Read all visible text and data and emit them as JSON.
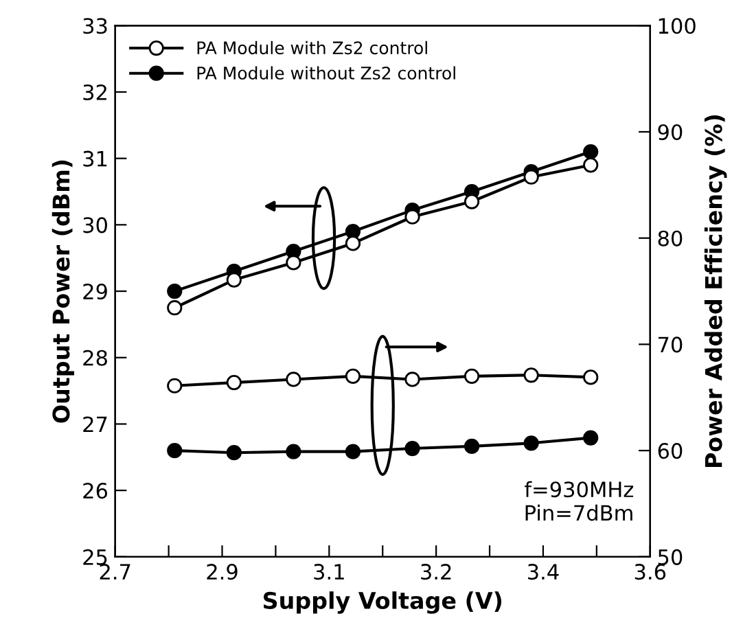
{
  "chart_data": {
    "type": "line",
    "xlabel": "Supply Voltage (V)",
    "ylabel": "Output Power (dBm)",
    "y2label": "Power Added Efficiency (%)",
    "x": [
      2.8,
      2.9,
      3.0,
      3.1,
      3.2,
      3.3,
      3.4,
      3.5
    ],
    "series": [
      {
        "name": "PA Module with Zs2 control",
        "color": "#ffffff",
        "values": [
          28.75,
          29.17,
          29.43,
          29.72,
          30.12,
          30.35,
          30.72,
          30.9
        ]
      },
      {
        "name": "PA Module without Zs2 control",
        "color": "#000000",
        "values": [
          29.0,
          29.3,
          29.6,
          29.9,
          30.22,
          30.5,
          30.8,
          31.1
        ]
      },
      {
        "color": "#ffffff",
        "axis": "y2",
        "values": [
          66.1,
          66.4,
          66.7,
          67.0,
          66.7,
          67.0,
          67.1,
          66.9
        ]
      },
      {
        "color": "#000000",
        "axis": "y2",
        "values": [
          60.0,
          59.8,
          59.9,
          59.9,
          60.2,
          60.4,
          60.7,
          61.2
        ]
      }
    ],
    "xlim": [
      2.7,
      3.6
    ],
    "xticks": [
      {
        "value": 2.7,
        "label": "2.7"
      },
      {
        "value": 2.79,
        "label": null
      },
      {
        "value": 2.88,
        "label": "2.9"
      },
      {
        "value": 2.97,
        "label": null
      },
      {
        "value": 3.06,
        "label": "3.1"
      },
      {
        "value": 3.15,
        "label": null
      },
      {
        "value": 3.24,
        "label": "3.2"
      },
      {
        "value": 3.33,
        "label": null
      },
      {
        "value": 3.42,
        "label": "3.4"
      },
      {
        "value": 3.51,
        "label": null
      },
      {
        "value": 3.6,
        "label": "3.6"
      }
    ],
    "ylim": [
      25,
      33
    ],
    "yticks": [
      25,
      26,
      27,
      28,
      29,
      30,
      31,
      32,
      33
    ],
    "y2lim": [
      50,
      100
    ],
    "y2ticks": [
      50,
      60,
      70,
      80,
      90,
      100
    ],
    "annotations": [
      "f=930MHz\nPin=7dBm"
    ],
    "marker": "circle",
    "line_style": "solid",
    "legend": "top left",
    "grid": false
  }
}
